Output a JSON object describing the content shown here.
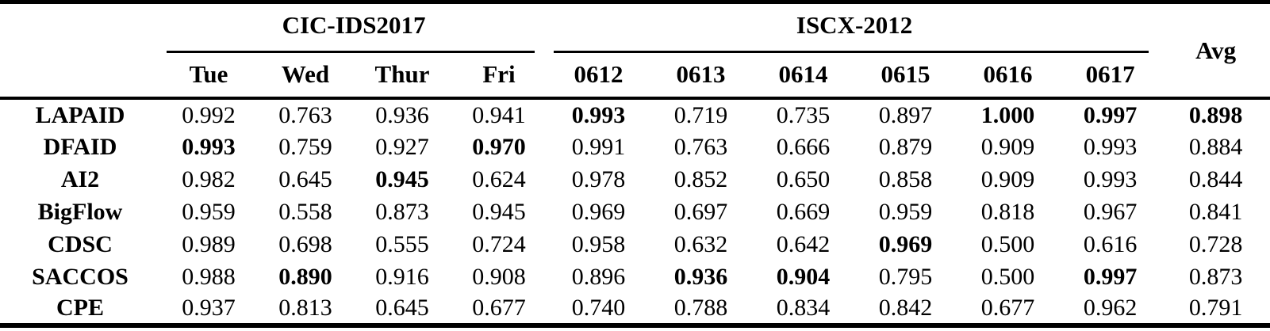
{
  "colors": {
    "text": "#000000",
    "background": "#ffffff",
    "rule": "#000000"
  },
  "table": {
    "col_groups": [
      {
        "label": "CIC-IDS2017",
        "span": 4
      },
      {
        "label": "ISCX-2012",
        "span": 6
      }
    ],
    "avg_label": "Avg",
    "columns": [
      "Tue",
      "Wed",
      "Thur",
      "Fri",
      "0612",
      "0613",
      "0614",
      "0615",
      "0616",
      "0617"
    ],
    "rows": [
      {
        "name": "LAPAID",
        "values": [
          "0.992",
          "0.763",
          "0.936",
          "0.941",
          "0.993",
          "0.719",
          "0.735",
          "0.897",
          "1.000",
          "0.997",
          "0.898"
        ],
        "bold": [
          4,
          8,
          9,
          10
        ]
      },
      {
        "name": "DFAID",
        "values": [
          "0.993",
          "0.759",
          "0.927",
          "0.970",
          "0.991",
          "0.763",
          "0.666",
          "0.879",
          "0.909",
          "0.993",
          "0.884"
        ],
        "bold": [
          0,
          3
        ]
      },
      {
        "name": "AI2",
        "values": [
          "0.982",
          "0.645",
          "0.945",
          "0.624",
          "0.978",
          "0.852",
          "0.650",
          "0.858",
          "0.909",
          "0.993",
          "0.844"
        ],
        "bold": [
          2
        ]
      },
      {
        "name": "BigFlow",
        "values": [
          "0.959",
          "0.558",
          "0.873",
          "0.945",
          "0.969",
          "0.697",
          "0.669",
          "0.959",
          "0.818",
          "0.967",
          "0.841"
        ],
        "bold": []
      },
      {
        "name": "CDSC",
        "values": [
          "0.989",
          "0.698",
          "0.555",
          "0.724",
          "0.958",
          "0.632",
          "0.642",
          "0.969",
          "0.500",
          "0.616",
          "0.728"
        ],
        "bold": [
          7
        ]
      },
      {
        "name": "SACCOS",
        "values": [
          "0.988",
          "0.890",
          "0.916",
          "0.908",
          "0.896",
          "0.936",
          "0.904",
          "0.795",
          "0.500",
          "0.997",
          "0.873"
        ],
        "bold": [
          1,
          5,
          6,
          9
        ]
      },
      {
        "name": "CPE",
        "values": [
          "0.937",
          "0.813",
          "0.645",
          "0.677",
          "0.740",
          "0.788",
          "0.834",
          "0.842",
          "0.677",
          "0.962",
          "0.791"
        ],
        "bold": []
      }
    ]
  },
  "chart_data": {
    "type": "table",
    "title": "",
    "column_groups": [
      "CIC-IDS2017 (Tue, Wed, Thur, Fri)",
      "ISCX-2012 (0612-0617)",
      "Avg"
    ],
    "categories": [
      "Tue",
      "Wed",
      "Thur",
      "Fri",
      "0612",
      "0613",
      "0614",
      "0615",
      "0616",
      "0617",
      "Avg"
    ],
    "series": [
      {
        "name": "LAPAID",
        "values": [
          0.992,
          0.763,
          0.936,
          0.941,
          0.993,
          0.719,
          0.735,
          0.897,
          1.0,
          0.997,
          0.898
        ]
      },
      {
        "name": "DFAID",
        "values": [
          0.993,
          0.759,
          0.927,
          0.97,
          0.991,
          0.763,
          0.666,
          0.879,
          0.909,
          0.993,
          0.884
        ]
      },
      {
        "name": "AI2",
        "values": [
          0.982,
          0.645,
          0.945,
          0.624,
          0.978,
          0.852,
          0.65,
          0.858,
          0.909,
          0.993,
          0.844
        ]
      },
      {
        "name": "BigFlow",
        "values": [
          0.959,
          0.558,
          0.873,
          0.945,
          0.969,
          0.697,
          0.669,
          0.959,
          0.818,
          0.967,
          0.841
        ]
      },
      {
        "name": "CDSC",
        "values": [
          0.989,
          0.698,
          0.555,
          0.724,
          0.958,
          0.632,
          0.642,
          0.969,
          0.5,
          0.616,
          0.728
        ]
      },
      {
        "name": "SACCOS",
        "values": [
          0.988,
          0.89,
          0.916,
          0.908,
          0.896,
          0.936,
          0.904,
          0.795,
          0.5,
          0.997,
          0.873
        ]
      },
      {
        "name": "CPE",
        "values": [
          0.937,
          0.813,
          0.645,
          0.677,
          0.74,
          0.788,
          0.834,
          0.842,
          0.677,
          0.962,
          0.791
        ]
      }
    ]
  }
}
